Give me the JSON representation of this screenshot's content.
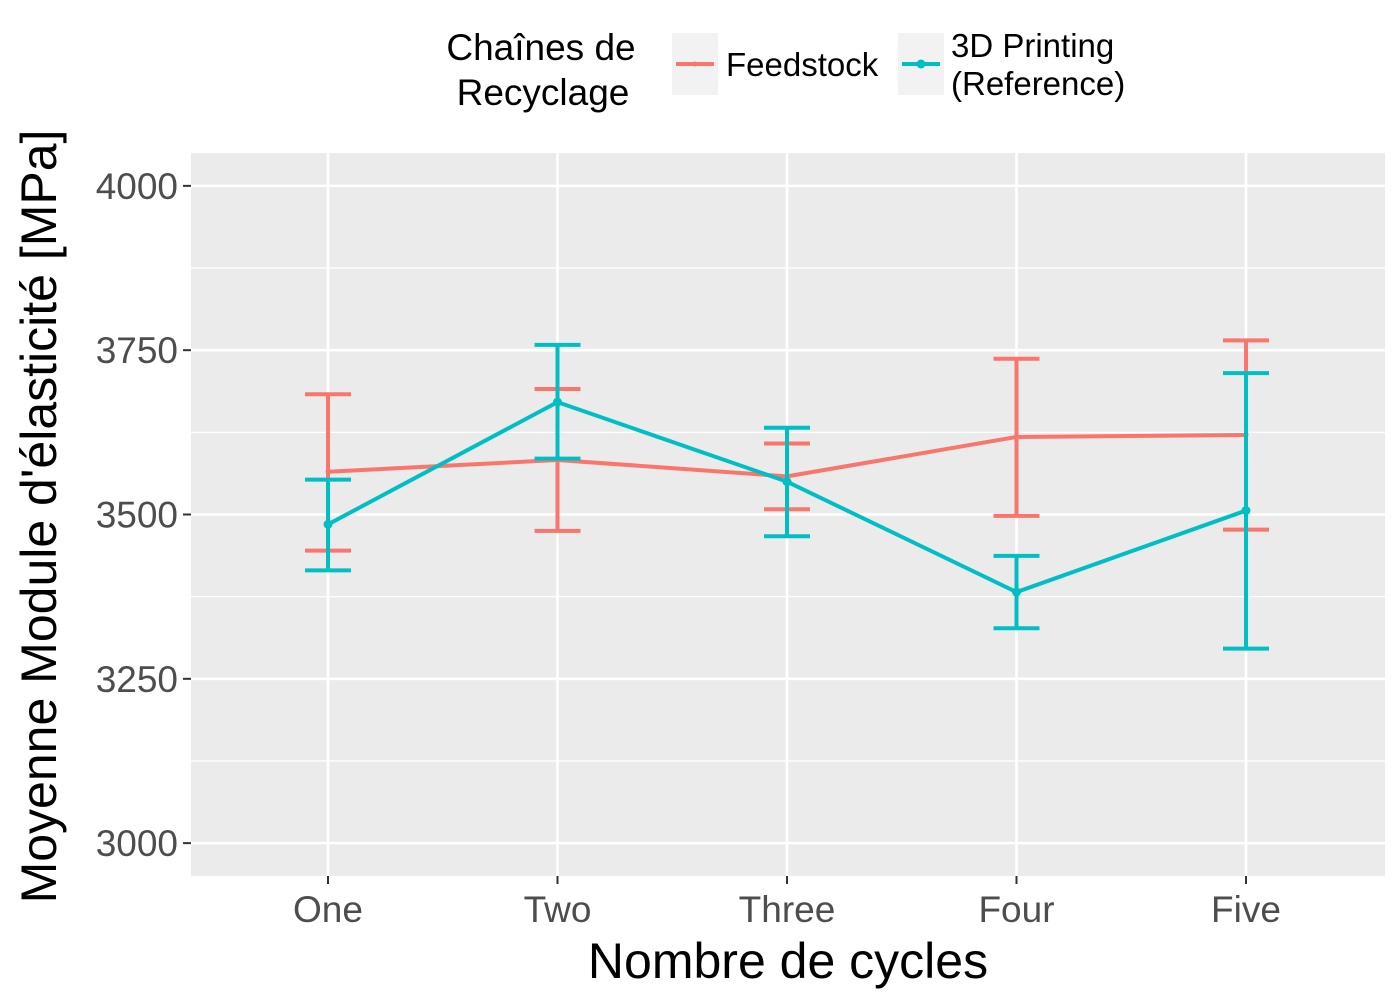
{
  "chart_data": {
    "type": "line",
    "title": "",
    "xlabel": "Nombre de cycles",
    "ylabel": "Moyenne Module d'élasticité [MPa]",
    "categories": [
      "One",
      "Two",
      "Three",
      "Four",
      "Five"
    ],
    "ylim": [
      2950,
      4050
    ],
    "yticks": [
      3000,
      3250,
      3500,
      3750,
      4000
    ],
    "y_minor_gridlines": [
      3125,
      3375,
      3625,
      3875
    ],
    "grid": true,
    "legend": {
      "title_lines": [
        "Chaînes de",
        "Recyclage"
      ],
      "position": "top",
      "entries": [
        {
          "lines": [
            "Feedstock"
          ],
          "color": "#F8766D"
        },
        {
          "lines": [
            "3D Printing",
            "(Reference)"
          ],
          "color": "#00BFC4"
        }
      ]
    },
    "series": [
      {
        "name": "Feedstock",
        "color": "#F8766D",
        "values": [
          3565,
          3583,
          3558,
          3618,
          3621
        ],
        "error_low": [
          3445,
          3475,
          3508,
          3498,
          3477
        ],
        "error_high": [
          3683,
          3691,
          3608,
          3737,
          3765
        ]
      },
      {
        "name": "3D Printing (Reference)",
        "color": "#00BFC4",
        "values": [
          3485,
          3671,
          3550,
          3382,
          3506
        ],
        "error_low": [
          3415,
          3585,
          3467,
          3327,
          3296
        ],
        "error_high": [
          3553,
          3758,
          3632,
          3437,
          3715
        ]
      }
    ]
  }
}
